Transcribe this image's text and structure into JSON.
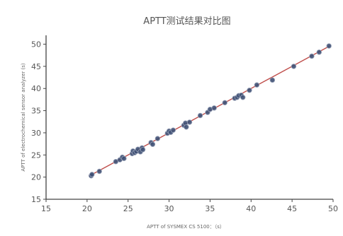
{
  "chart_data": {
    "type": "scatter",
    "title": "APTT测试结果对比图",
    "xlabel": "APTT of SYSMEX CS 5100：（s）",
    "ylabel": "APTT of electrochemical sensor analyzer (s)",
    "xlim": [
      15,
      50
    ],
    "ylim": [
      15,
      52
    ],
    "xticks": [
      15,
      20,
      25,
      30,
      35,
      40,
      45,
      50
    ],
    "yticks": [
      15,
      20,
      25,
      30,
      35,
      40,
      45,
      50
    ],
    "grid": false,
    "legend": "none",
    "colors": {
      "point": "#3d4f73",
      "point_edge": "#9aa3b8",
      "fit_line": "#c0504d",
      "axis": "#444444"
    },
    "points": [
      {
        "x": 20.5,
        "y": 20.3
      },
      {
        "x": 20.6,
        "y": 20.6
      },
      {
        "x": 21.5,
        "y": 21.3
      },
      {
        "x": 23.5,
        "y": 23.5
      },
      {
        "x": 24.0,
        "y": 23.9
      },
      {
        "x": 24.3,
        "y": 24.5
      },
      {
        "x": 24.5,
        "y": 24.2
      },
      {
        "x": 25.5,
        "y": 25.3
      },
      {
        "x": 25.6,
        "y": 25.9
      },
      {
        "x": 25.8,
        "y": 25.5
      },
      {
        "x": 26.0,
        "y": 25.8
      },
      {
        "x": 26.2,
        "y": 26.3
      },
      {
        "x": 26.5,
        "y": 25.7
      },
      {
        "x": 26.7,
        "y": 26.6
      },
      {
        "x": 26.8,
        "y": 26.2
      },
      {
        "x": 27.8,
        "y": 27.8
      },
      {
        "x": 28.0,
        "y": 27.4
      },
      {
        "x": 28.6,
        "y": 28.7
      },
      {
        "x": 29.8,
        "y": 29.9
      },
      {
        "x": 30.0,
        "y": 30.4
      },
      {
        "x": 30.2,
        "y": 30.1
      },
      {
        "x": 30.5,
        "y": 30.6
      },
      {
        "x": 31.8,
        "y": 31.7
      },
      {
        "x": 32.0,
        "y": 32.2
      },
      {
        "x": 32.1,
        "y": 31.3
      },
      {
        "x": 32.5,
        "y": 32.4
      },
      {
        "x": 33.8,
        "y": 33.9
      },
      {
        "x": 34.7,
        "y": 34.6
      },
      {
        "x": 35.0,
        "y": 35.3
      },
      {
        "x": 35.5,
        "y": 35.6
      },
      {
        "x": 36.8,
        "y": 36.8
      },
      {
        "x": 38.0,
        "y": 37.8
      },
      {
        "x": 38.3,
        "y": 38.0
      },
      {
        "x": 38.5,
        "y": 38.4
      },
      {
        "x": 38.8,
        "y": 38.5
      },
      {
        "x": 39.0,
        "y": 38.0
      },
      {
        "x": 39.8,
        "y": 39.6
      },
      {
        "x": 40.7,
        "y": 40.8
      },
      {
        "x": 42.6,
        "y": 41.9
      },
      {
        "x": 45.2,
        "y": 45.0
      },
      {
        "x": 47.4,
        "y": 47.3
      },
      {
        "x": 48.3,
        "y": 48.2
      },
      {
        "x": 49.5,
        "y": 49.6
      }
    ],
    "fit_line": {
      "x": [
        20.2,
        49.6
      ],
      "y": [
        20.2,
        49.6
      ]
    }
  }
}
